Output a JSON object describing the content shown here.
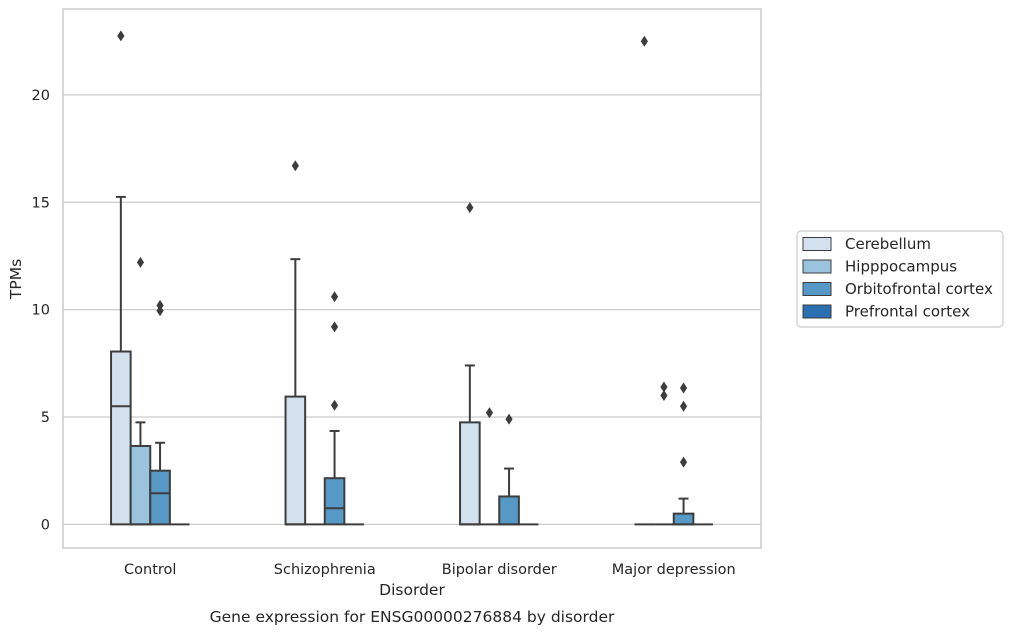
{
  "chart_data": {
    "type": "box",
    "caption": "Gene expression for ENSG00000276884 by disorder",
    "xlabel": "Disorder",
    "ylabel": "TPMs",
    "ylim": [
      -1.1,
      24.0
    ],
    "yticks": [
      0,
      5,
      10,
      15,
      20
    ],
    "grid": "horizontal",
    "legend_position": "right",
    "categories": [
      "Control",
      "Schizophrenia",
      "Bipolar disorder",
      "Major depression"
    ],
    "series": [
      {
        "name": "Cerebellum",
        "color": "#d3e1ef",
        "boxes": [
          {
            "min": 0,
            "q1": 0,
            "median": 5.5,
            "q3": 8.05,
            "max": 15.25,
            "outliers": [
              22.75
            ]
          },
          {
            "min": 0,
            "q1": 0,
            "median": 0,
            "q3": 5.95,
            "max": 12.35,
            "outliers": [
              16.7
            ]
          },
          {
            "min": 0,
            "q1": 0,
            "median": 0,
            "q3": 4.75,
            "max": 7.4,
            "outliers": [
              14.75
            ]
          },
          {
            "min": 0,
            "q1": 0,
            "median": 0,
            "q3": 0,
            "max": 0,
            "outliers": [
              22.5
            ]
          }
        ]
      },
      {
        "name": "Hipppocampus",
        "color": "#9ac4de",
        "boxes": [
          {
            "min": 0,
            "q1": 0,
            "median": 0,
            "q3": 3.65,
            "max": 4.75,
            "outliers": [
              12.2
            ]
          },
          {
            "min": 0,
            "q1": 0,
            "median": 0,
            "q3": 0,
            "max": 0,
            "outliers": []
          },
          {
            "min": 0,
            "q1": 0,
            "median": 0,
            "q3": 0,
            "max": 0,
            "outliers": [
              5.2
            ]
          },
          {
            "min": 0,
            "q1": 0,
            "median": 0,
            "q3": 0,
            "max": 0,
            "outliers": [
              6.4,
              6.0
            ]
          }
        ]
      },
      {
        "name": "Orbitofrontal cortex",
        "color": "#5799c6",
        "boxes": [
          {
            "min": 0,
            "q1": 0,
            "median": 1.45,
            "q3": 2.5,
            "max": 3.8,
            "outliers": [
              10.2,
              9.95
            ]
          },
          {
            "min": 0,
            "q1": 0,
            "median": 0.75,
            "q3": 2.15,
            "max": 4.35,
            "outliers": [
              10.6,
              9.2,
              5.55
            ]
          },
          {
            "min": 0,
            "q1": 0,
            "median": 0,
            "q3": 1.3,
            "max": 2.6,
            "outliers": [
              4.9
            ]
          },
          {
            "min": 0,
            "q1": 0,
            "median": 0,
            "q3": 0.5,
            "max": 1.2,
            "outliers": [
              6.35,
              5.5,
              2.9
            ]
          }
        ]
      },
      {
        "name": "Prefrontal cortex",
        "color": "#2a6faf",
        "boxes": [
          {
            "min": 0,
            "q1": 0,
            "median": 0,
            "q3": 0,
            "max": 0,
            "outliers": []
          },
          {
            "min": 0,
            "q1": 0,
            "median": 0,
            "q3": 0,
            "max": 0,
            "outliers": []
          },
          {
            "min": 0,
            "q1": 0,
            "median": 0,
            "q3": 0,
            "max": 0,
            "outliers": []
          },
          {
            "min": 0,
            "q1": 0,
            "median": 0,
            "q3": 0,
            "max": 0,
            "outliers": []
          }
        ]
      }
    ]
  },
  "colors": {
    "box_edge": "#3d3d3d",
    "grid": "#cccccc",
    "spine": "#cccccc"
  }
}
